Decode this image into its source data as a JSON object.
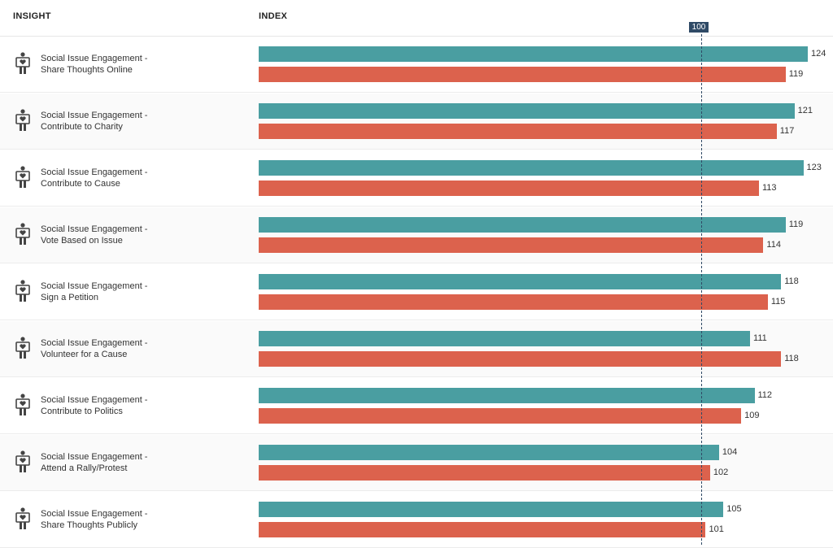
{
  "header": {
    "insight": "INSIGHT",
    "index": "INDEX"
  },
  "reference": {
    "value": 100,
    "label": "100"
  },
  "colors": {
    "series_a": "#4a9ea1",
    "series_b": "#dc624d",
    "reference": "#2f4a66"
  },
  "icon": "person-holding-heart-sign-icon",
  "chart_data": {
    "type": "bar",
    "orientation": "horizontal",
    "xlabel": "INDEX",
    "ylabel": "INSIGHT",
    "categories": [
      [
        "Social Issue Engagement -",
        "Share Thoughts Online"
      ],
      [
        "Social Issue Engagement -",
        "Contribute to Charity"
      ],
      [
        "Social Issue Engagement -",
        "Contribute to Cause"
      ],
      [
        "Social Issue Engagement -",
        "Vote Based on Issue"
      ],
      [
        "Social Issue Engagement -",
        "Sign a Petition"
      ],
      [
        "Social Issue Engagement -",
        "Volunteer for a Cause"
      ],
      [
        "Social Issue Engagement -",
        "Contribute to Politics"
      ],
      [
        "Social Issue Engagement -",
        "Attend a Rally/Protest"
      ],
      [
        "Social Issue Engagement -",
        "Share Thoughts Publicly"
      ]
    ],
    "series": [
      {
        "color": "#4a9ea1",
        "values": [
          124,
          121,
          123,
          119,
          118,
          111,
          112,
          104,
          105
        ]
      },
      {
        "color": "#dc624d",
        "values": [
          119,
          117,
          113,
          114,
          115,
          118,
          109,
          102,
          101
        ]
      }
    ],
    "reference_line": 100,
    "grid": false
  }
}
